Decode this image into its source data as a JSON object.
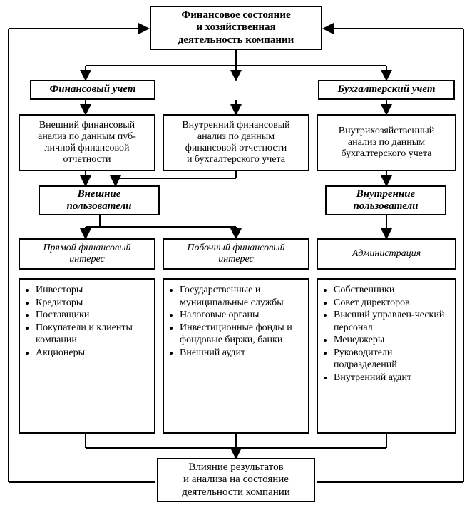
{
  "type": "flowchart",
  "background_color": "#ffffff",
  "border_color": "#000000",
  "font_family": "Times New Roman",
  "title_fontsize": 15,
  "body_fontsize": 14,
  "nodes": {
    "top": {
      "l1": "Финансовое состояние",
      "l2": "и хозяйственная",
      "l3": "деятельность компании"
    },
    "fin_uchet": "Финансовый учет",
    "buh_uchet": "Бухгалтерский учет",
    "analiz_left": {
      "l1": "Внешний финансовый",
      "l2": "анализ по данным пуб-",
      "l3": "личной финансовой",
      "l4": "отчетности"
    },
    "analiz_mid": {
      "l1": "Внутренний финансовый",
      "l2": "анализ по данным",
      "l3": "финансовой отчетности",
      "l4": "и бухгалтерского учета"
    },
    "analiz_right": {
      "l1": "Внутрихозяйственный",
      "l2": "анализ по данным",
      "l3": "бухгалтерского учета"
    },
    "ext_users": {
      "l1": "Внешние",
      "l2": "пользователи"
    },
    "int_users": {
      "l1": "Внутренние",
      "l2": "пользователи"
    },
    "col1": {
      "title1": "Прямой финансовый",
      "title2": "интерес",
      "items": [
        "Инвесторы",
        "Кредиторы",
        "Поставщики",
        "Покупатели и клиенты компании",
        "Акционеры"
      ]
    },
    "col2": {
      "title1": "Побочный финансовый",
      "title2": "интерес",
      "items": [
        "Государственные и муниципальные службы",
        "Налоговые органы",
        "Инвестиционные фонды и фондовые биржи, банки",
        "Внешний аудит"
      ]
    },
    "col3": {
      "title": "Администрация",
      "items": [
        "Собственники",
        "Совет директоров",
        "Высший управлен-ческий персонал",
        "Менеджеры",
        "Руководители подразделений",
        "Внутренний аудит"
      ]
    },
    "bottom": {
      "l1": "Влияние результатов",
      "l2": "и анализа на состояние",
      "l3": "деятельности компании"
    }
  }
}
